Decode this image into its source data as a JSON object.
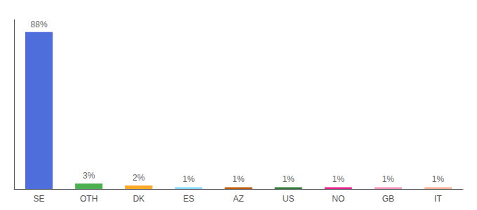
{
  "chart_data": {
    "type": "bar",
    "categories": [
      "SE",
      "OTH",
      "DK",
      "ES",
      "AZ",
      "US",
      "NO",
      "GB",
      "IT"
    ],
    "values": [
      88,
      3,
      2,
      1,
      1,
      1,
      1,
      1,
      1
    ],
    "value_labels": [
      "88%",
      "3%",
      "2%",
      "1%",
      "1%",
      "1%",
      "1%",
      "1%",
      "1%"
    ],
    "colors": [
      "#4d6edb",
      "#4caf50",
      "#ffa726",
      "#81d4fa",
      "#bf5b00",
      "#2e7d32",
      "#e91e8c",
      "#f48fb1",
      "#ffab91"
    ],
    "ylim": [
      0,
      95
    ],
    "data_labels": true,
    "tick_labels": "x",
    "grid": false
  }
}
